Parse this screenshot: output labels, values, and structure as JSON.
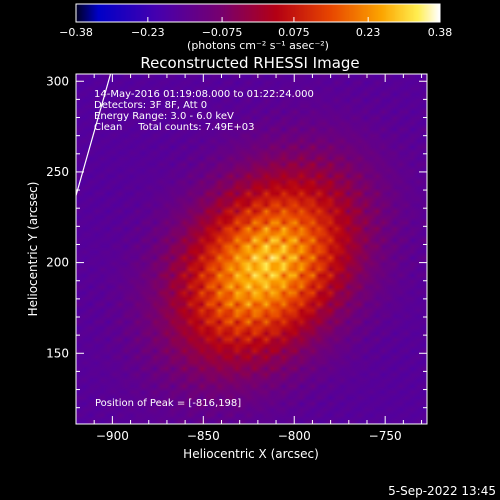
{
  "chart_data": {
    "type": "heatmap",
    "title": "Reconstructed RHESSI Image",
    "xlabel": "Heliocentric X (arcsec)",
    "ylabel": "Heliocentric Y (arcsec)",
    "xlim": [
      -920,
      -727
    ],
    "ylim": [
      111,
      304
    ],
    "x_ticks": [
      -900,
      -850,
      -800,
      -750
    ],
    "y_ticks": [
      150,
      200,
      250,
      300
    ],
    "colorbar": {
      "ticks": [
        "-0.38",
        "-0.23",
        "-0.075",
        "0.075",
        "0.23",
        "0.38"
      ],
      "range": [
        -0.38,
        0.38
      ],
      "unit_label": "(photons cm⁻² s⁻¹ asec⁻²)"
    },
    "peak": {
      "x": -816,
      "y": 198
    },
    "annotations": [
      "14-May-2016 01:19:08.000 to 01:22:24.000",
      "Detectors: 3F 8F, Att 0",
      "Energy Range: 3.0 - 6.0 keV",
      "Clean     Total counts: 7.49E+03"
    ],
    "peak_label": "Position of Peak = [-816,198]",
    "limb_line": [
      [
        -920,
        237
      ],
      [
        -901,
        304
      ]
    ]
  },
  "footer": {
    "date": "5-Sep-2022 13:45"
  }
}
